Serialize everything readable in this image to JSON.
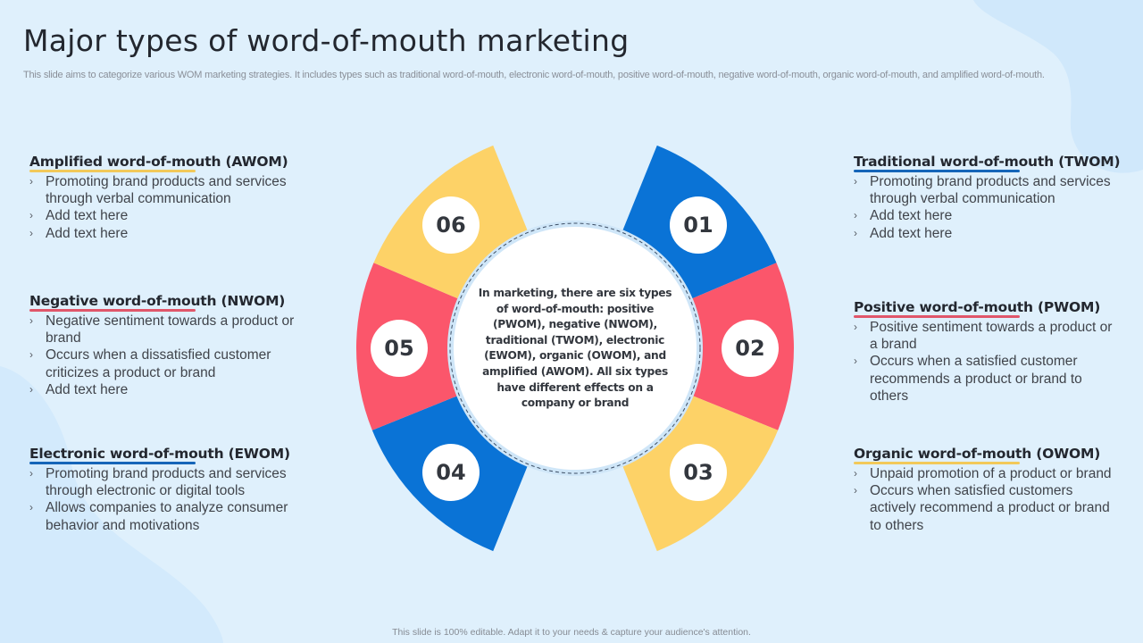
{
  "slide": {
    "title": "Major types of word-of-mouth marketing",
    "subtitle": "This slide aims to categorize various WOM  marketing strategies. It includes types such as traditional word-of-mouth, electronic word-of-mouth, positive word-of-mouth, negative word-of-mouth, organic word-of-mouth, and amplified word-of-mouth.",
    "footer": "This slide is 100% editable.  Adapt it to your needs & capture your audience's attention."
  },
  "colors": {
    "background": "#dff0fc",
    "blue": "#0a73d6",
    "red": "#fb566b",
    "yellow": "#fdd267",
    "underline_blue": "#1565b8",
    "underline_red": "#e0566a",
    "underline_yellow": "#f2c95a"
  },
  "center": {
    "text": "In marketing, there are six types of word-of-mouth: positive (PWOM), negative (NWOM), traditional (TWOM), electronic (EWOM), organic (OWOM), and amplified (AWOM). All six types have different effects on a company or brand"
  },
  "segments": [
    {
      "number": "01",
      "color": "blue"
    },
    {
      "number": "02",
      "color": "red"
    },
    {
      "number": "03",
      "color": "yellow"
    },
    {
      "number": "04",
      "color": "blue"
    },
    {
      "number": "05",
      "color": "red"
    },
    {
      "number": "06",
      "color": "yellow"
    }
  ],
  "left_blocks": [
    {
      "heading": "Amplified word-of-mouth (AWOM)",
      "underline": "yellow",
      "bullets": [
        "Promoting brand products and services through verbal communication",
        "Add text here",
        "Add text here"
      ]
    },
    {
      "heading": "Negative word-of-mouth (NWOM)",
      "underline": "red",
      "bullets": [
        "Negative sentiment towards a product or brand",
        "Occurs when a dissatisfied customer criticizes a product or brand",
        "Add text here"
      ]
    },
    {
      "heading": "Electronic word-of-mouth (EWOM)",
      "underline": "blue",
      "bullets": [
        "Promoting brand products and services through electronic or digital tools",
        "Allows companies to analyze consumer behavior and motivations"
      ]
    }
  ],
  "right_blocks": [
    {
      "heading": "Traditional word-of-mouth (TWOM)",
      "underline": "blue",
      "bullets": [
        "Promoting brand products and services through verbal communication",
        "Add text here",
        "Add text here"
      ]
    },
    {
      "heading": "Positive word-of-mouth (PWOM)",
      "underline": "red",
      "bullets": [
        "Positive sentiment towards a product or a brand",
        "Occurs when a satisfied customer recommends a product or brand to others"
      ]
    },
    {
      "heading": "Organic word-of-mouth (OWOM)",
      "underline": "yellow",
      "bullets": [
        "Unpaid promotion of a product or brand",
        "Occurs when satisfied customers actively recommend a product or brand to others"
      ]
    }
  ],
  "bullet_glyph": "›"
}
